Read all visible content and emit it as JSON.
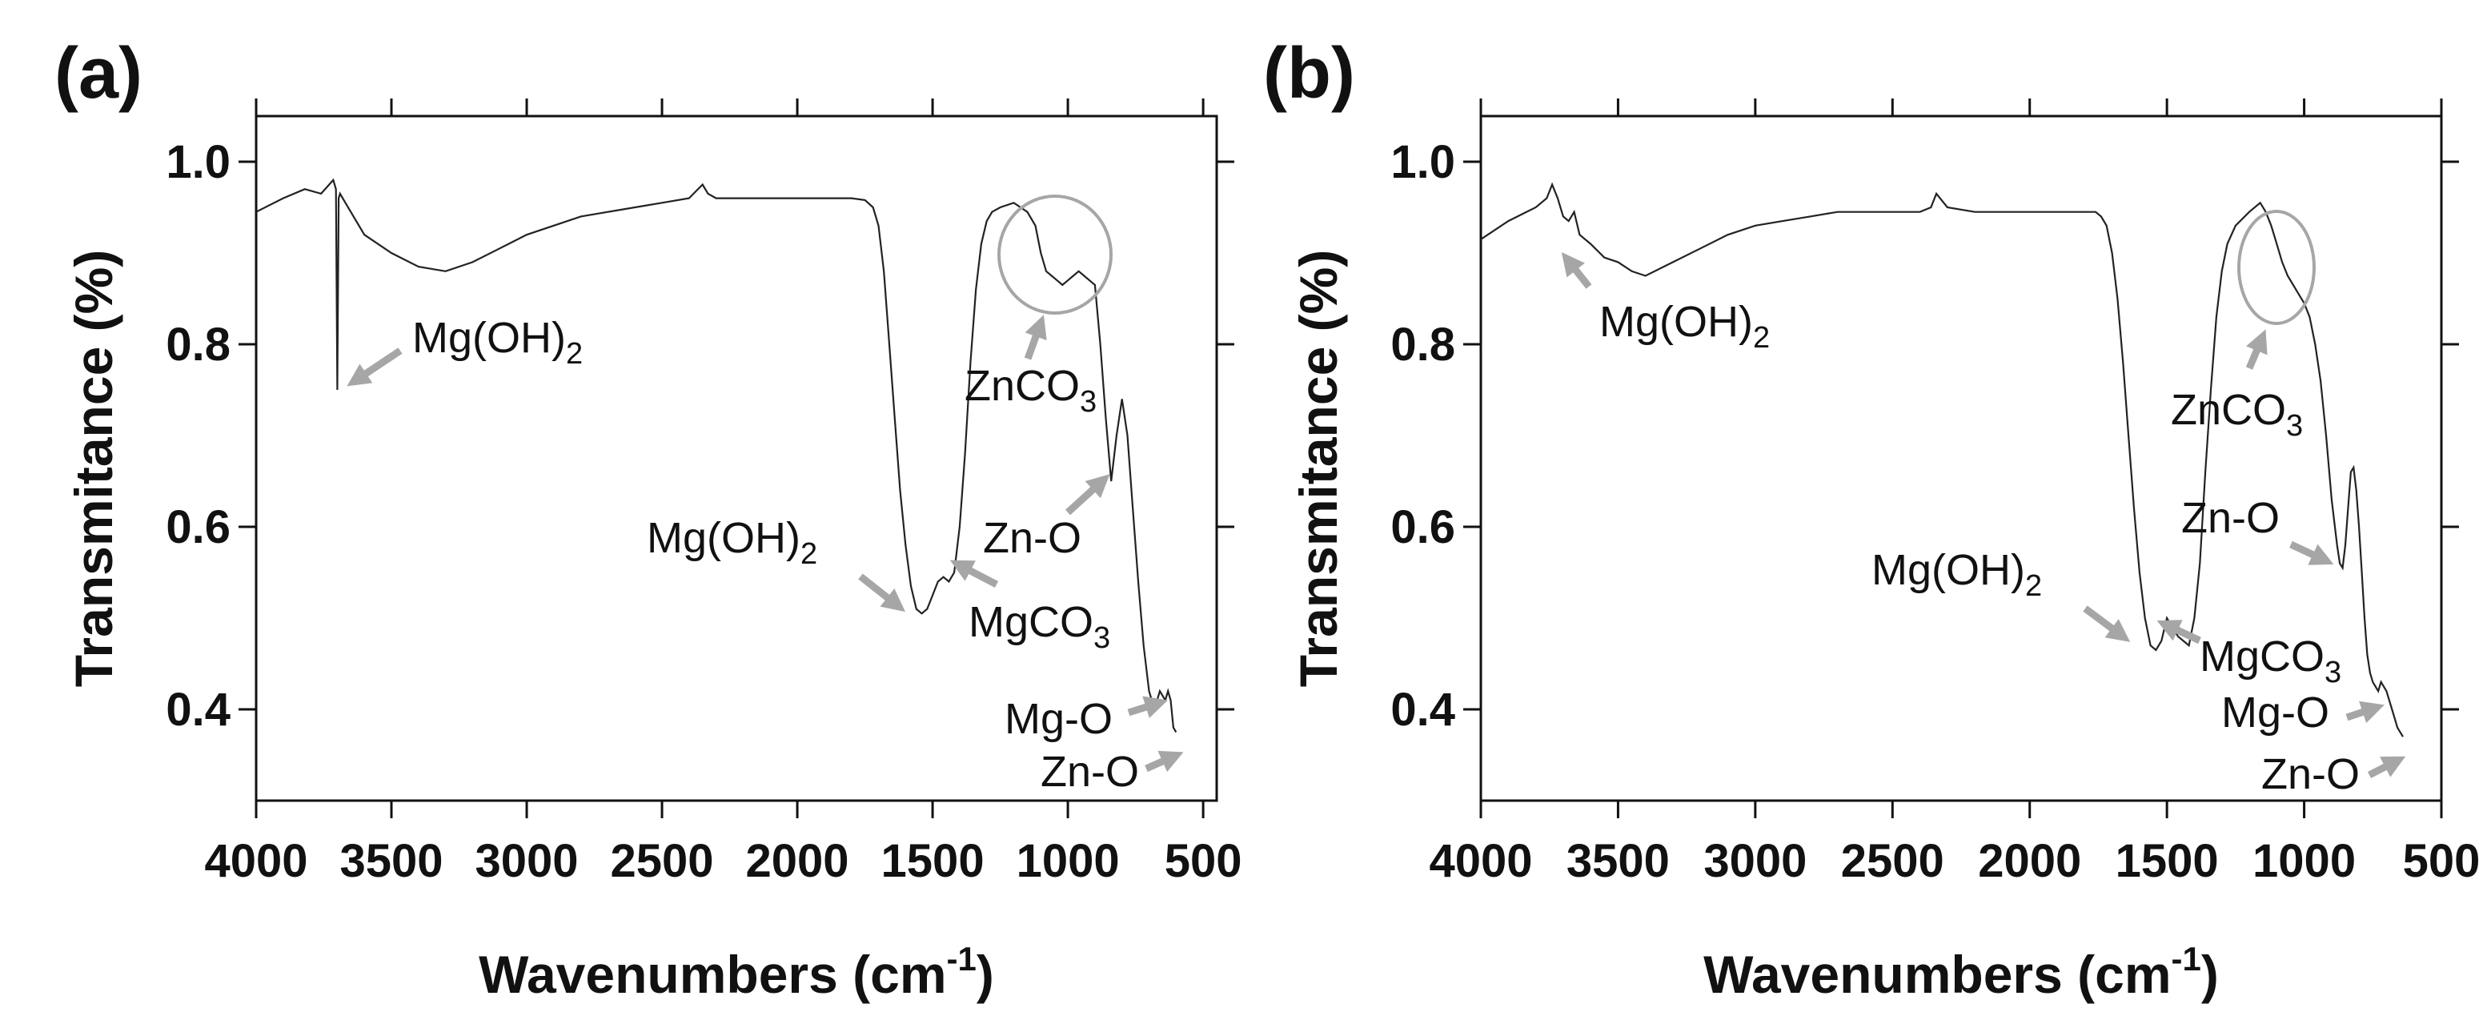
{
  "chart_data": [
    {
      "panel": "(a)",
      "type": "line",
      "xlabel": "Wavenumbers (cm",
      "xlabel_sup": "-1",
      "xlabel_end": ")",
      "ylabel": "Transmitance (%)",
      "xlim": [
        4000,
        450
      ],
      "ylim": [
        0.3,
        1.05
      ],
      "xticks": [
        4000,
        3500,
        3000,
        2500,
        2000,
        1500,
        1000,
        500
      ],
      "yticks": [
        0.4,
        0.6,
        0.8,
        1.0
      ],
      "ytick_labels": [
        "0.4",
        "0.6",
        "0.8",
        "1.0"
      ],
      "series": [
        {
          "name": "spectrum",
          "x": [
            4000,
            3900,
            3820,
            3760,
            3730,
            3715,
            3705,
            3700,
            3695,
            3690,
            3670,
            3600,
            3500,
            3400,
            3300,
            3200,
            3100,
            3000,
            2900,
            2800,
            2700,
            2600,
            2500,
            2400,
            2350,
            2330,
            2300,
            2200,
            2100,
            2000,
            1900,
            1800,
            1750,
            1720,
            1700,
            1680,
            1660,
            1640,
            1620,
            1600,
            1580,
            1560,
            1540,
            1520,
            1500,
            1480,
            1460,
            1440,
            1420,
            1400,
            1380,
            1360,
            1340,
            1320,
            1300,
            1280,
            1250,
            1200,
            1150,
            1120,
            1100,
            1080,
            1060,
            1040,
            1020,
            1000,
            980,
            960,
            940,
            920,
            900,
            880,
            860,
            840,
            820,
            800,
            780,
            760,
            740,
            720,
            700,
            690,
            680,
            670,
            660,
            650,
            640,
            630,
            620,
            610,
            600
          ],
          "y": [
            0.945,
            0.96,
            0.97,
            0.965,
            0.975,
            0.98,
            0.97,
            0.75,
            0.96,
            0.965,
            0.955,
            0.92,
            0.9,
            0.885,
            0.88,
            0.89,
            0.905,
            0.92,
            0.93,
            0.94,
            0.945,
            0.95,
            0.955,
            0.96,
            0.975,
            0.965,
            0.96,
            0.96,
            0.96,
            0.96,
            0.96,
            0.96,
            0.958,
            0.95,
            0.93,
            0.88,
            0.8,
            0.72,
            0.64,
            0.58,
            0.535,
            0.51,
            0.505,
            0.51,
            0.525,
            0.54,
            0.545,
            0.54,
            0.55,
            0.6,
            0.68,
            0.78,
            0.86,
            0.91,
            0.935,
            0.945,
            0.95,
            0.955,
            0.945,
            0.93,
            0.9,
            0.88,
            0.875,
            0.87,
            0.865,
            0.87,
            0.875,
            0.88,
            0.875,
            0.87,
            0.865,
            0.8,
            0.72,
            0.65,
            0.7,
            0.74,
            0.7,
            0.62,
            0.54,
            0.47,
            0.42,
            0.41,
            0.405,
            0.41,
            0.42,
            0.415,
            0.41,
            0.42,
            0.41,
            0.38,
            0.375
          ]
        }
      ],
      "annotations": [
        {
          "id": "mgoh2-a",
          "text": "Mg(OH)",
          "sub": "2"
        },
        {
          "id": "znco3-a",
          "text": "ZnCO",
          "sub": "3"
        },
        {
          "id": "zno-a",
          "text": "Zn-O",
          "sub": ""
        },
        {
          "id": "mgoh2b-a",
          "text": "Mg(OH)",
          "sub": "2"
        },
        {
          "id": "mgco3-a",
          "text": "MgCO",
          "sub": "3"
        },
        {
          "id": "mgo-a",
          "text": "Mg-O",
          "sub": ""
        },
        {
          "id": "zno2-a",
          "text": "Zn-O",
          "sub": ""
        }
      ]
    },
    {
      "panel": "(b)",
      "type": "line",
      "xlabel": "Wavenumbers (cm",
      "xlabel_sup": "-1",
      "xlabel_end": ")",
      "ylabel": "Transmitance (%)",
      "xlim": [
        4000,
        500
      ],
      "ylim": [
        0.3,
        1.05
      ],
      "xticks": [
        4000,
        3500,
        3000,
        2500,
        2000,
        1500,
        1000,
        500
      ],
      "yticks": [
        0.4,
        0.6,
        0.8,
        1.0
      ],
      "ytick_labels": [
        "0.4",
        "0.6",
        "0.8",
        "1.0"
      ],
      "series": [
        {
          "name": "spectrum",
          "x": [
            4000,
            3900,
            3800,
            3760,
            3740,
            3720,
            3700,
            3680,
            3660,
            3640,
            3600,
            3550,
            3500,
            3450,
            3400,
            3300,
            3200,
            3100,
            3000,
            2900,
            2800,
            2700,
            2600,
            2500,
            2400,
            2360,
            2340,
            2300,
            2200,
            2100,
            2000,
            1900,
            1800,
            1760,
            1740,
            1720,
            1700,
            1680,
            1660,
            1640,
            1620,
            1600,
            1580,
            1560,
            1540,
            1520,
            1500,
            1480,
            1460,
            1440,
            1420,
            1400,
            1380,
            1360,
            1340,
            1320,
            1300,
            1280,
            1250,
            1200,
            1160,
            1140,
            1120,
            1100,
            1080,
            1060,
            1040,
            1020,
            1000,
            980,
            960,
            940,
            920,
            900,
            880,
            870,
            860,
            850,
            840,
            830,
            820,
            810,
            800,
            790,
            780,
            770,
            760,
            750,
            740,
            730,
            720,
            700,
            680,
            660,
            640
          ],
          "y": [
            0.915,
            0.935,
            0.95,
            0.96,
            0.975,
            0.96,
            0.94,
            0.935,
            0.945,
            0.92,
            0.91,
            0.895,
            0.89,
            0.88,
            0.875,
            0.89,
            0.905,
            0.92,
            0.93,
            0.935,
            0.94,
            0.945,
            0.945,
            0.945,
            0.945,
            0.95,
            0.965,
            0.95,
            0.945,
            0.945,
            0.945,
            0.945,
            0.945,
            0.945,
            0.94,
            0.93,
            0.9,
            0.85,
            0.78,
            0.7,
            0.62,
            0.55,
            0.5,
            0.47,
            0.465,
            0.475,
            0.5,
            0.49,
            0.48,
            0.475,
            0.47,
            0.5,
            0.56,
            0.66,
            0.75,
            0.83,
            0.88,
            0.91,
            0.93,
            0.945,
            0.955,
            0.945,
            0.93,
            0.91,
            0.89,
            0.875,
            0.865,
            0.855,
            0.845,
            0.83,
            0.8,
            0.76,
            0.7,
            0.63,
            0.58,
            0.56,
            0.555,
            0.58,
            0.62,
            0.66,
            0.665,
            0.64,
            0.6,
            0.55,
            0.5,
            0.46,
            0.44,
            0.43,
            0.425,
            0.42,
            0.43,
            0.42,
            0.4,
            0.38,
            0.37
          ]
        }
      ],
      "annotations": [
        {
          "id": "mgoh2-b",
          "text": "Mg(OH)",
          "sub": "2"
        },
        {
          "id": "znco3-b",
          "text": "ZnCO",
          "sub": "3"
        },
        {
          "id": "zno-b",
          "text": "Zn-O",
          "sub": ""
        },
        {
          "id": "mgoh2b-b",
          "text": "Mg(OH)",
          "sub": "2"
        },
        {
          "id": "mgco3-b",
          "text": "MgCO",
          "sub": "3"
        },
        {
          "id": "mgo-b",
          "text": "Mg-O",
          "sub": ""
        },
        {
          "id": "zno2-b",
          "text": "Zn-O",
          "sub": ""
        }
      ]
    }
  ]
}
